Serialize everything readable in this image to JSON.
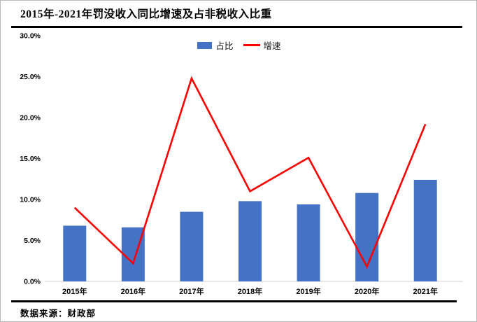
{
  "title": "2015年-2021年罚没收入同比增速及占非税收入比重",
  "source": "数据来源：财政部",
  "legend": {
    "bar_label": "占比",
    "line_label": "增速"
  },
  "colors": {
    "bar": "#4472C4",
    "line": "#FE0000",
    "axis": "#D9D9D9",
    "text": "#000000"
  },
  "chart_data": {
    "type": "bar",
    "subtype": "bar+line combo",
    "title": "2015年-2021年罚没收入同比增速及占非税收入比重",
    "categories": [
      "2015年",
      "2016年",
      "2017年",
      "2018年",
      "2019年",
      "2020年",
      "2021年"
    ],
    "series": [
      {
        "name": "占比",
        "type": "bar",
        "color": "#4472C4",
        "values": [
          6.8,
          6.6,
          8.5,
          9.8,
          9.4,
          10.8,
          12.4
        ]
      },
      {
        "name": "增速",
        "type": "line",
        "color": "#FE0000",
        "values": [
          9.0,
          2.2,
          24.8,
          11.0,
          15.1,
          1.8,
          19.2
        ]
      }
    ],
    "xlabel": "",
    "ylabel": "",
    "ylim": [
      0,
      30
    ],
    "ytick_step": 5,
    "ytick_labels": [
      "0.0%",
      "5.0%",
      "10.0%",
      "15.0%",
      "20.0%",
      "25.0%",
      "30.0%"
    ],
    "grid": false,
    "legend_position": "top-center",
    "value_unit": "percent"
  }
}
